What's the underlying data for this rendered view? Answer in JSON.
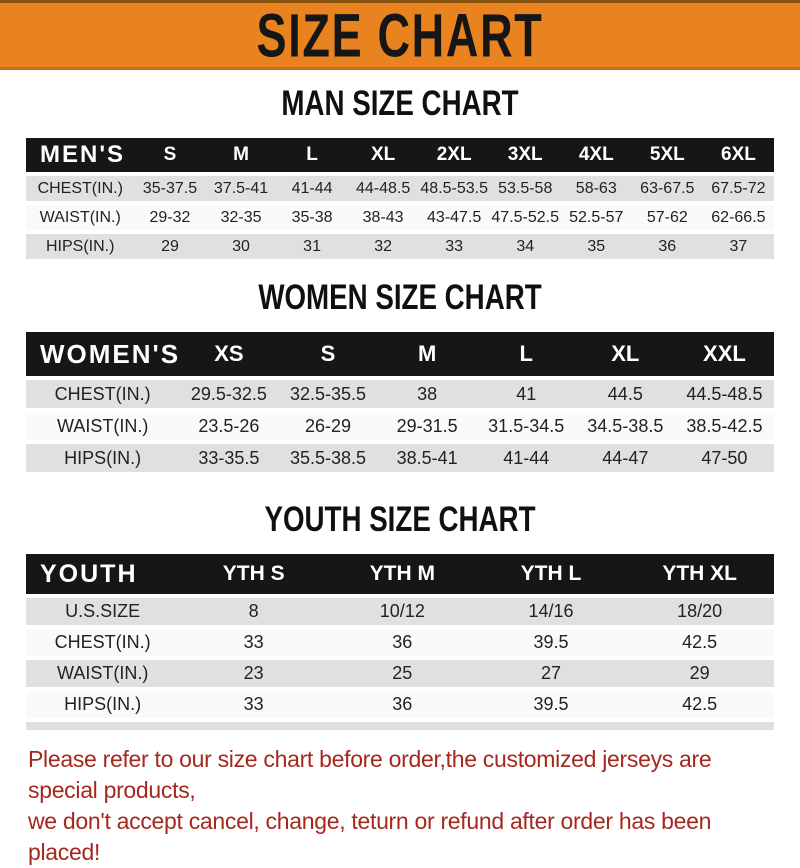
{
  "banner": {
    "title": "SIZE CHART",
    "bg_color": "#E8831F",
    "text_color": "#161616"
  },
  "sections": [
    {
      "heading": "MAN SIZE CHART",
      "table": {
        "header": [
          "MEN'S",
          "S",
          "M",
          "L",
          "XL",
          "2XL",
          "3XL",
          "4XL",
          "5XL",
          "6XL"
        ],
        "rows": [
          [
            "CHEST(IN.)",
            "35-37.5",
            "37.5-41",
            "41-44",
            "44-48.5",
            "48.5-53.5",
            "53.5-58",
            "58-63",
            "63-67.5",
            "67.5-72"
          ],
          [
            "WAIST(IN.)",
            "29-32",
            "32-35",
            "35-38",
            "38-43",
            "43-47.5",
            "47.5-52.5",
            "52.5-57",
            "57-62",
            "62-66.5"
          ],
          [
            "HIPS(IN.)",
            "29",
            "30",
            "31",
            "32",
            "33",
            "34",
            "35",
            "36",
            "37"
          ]
        ]
      }
    },
    {
      "heading": "WOMEN SIZE CHART",
      "table": {
        "header": [
          "WOMEN'S",
          "XS",
          "S",
          "M",
          "L",
          "XL",
          "XXL"
        ],
        "rows": [
          [
            "CHEST(IN.)",
            "29.5-32.5",
            "32.5-35.5",
            "38",
            "41",
            "44.5",
            "44.5-48.5"
          ],
          [
            "WAIST(IN.)",
            "23.5-26",
            "26-29",
            "29-31.5",
            "31.5-34.5",
            "34.5-38.5",
            "38.5-42.5"
          ],
          [
            "HIPS(IN.)",
            "33-35.5",
            "35.5-38.5",
            "38.5-41",
            "41-44",
            "44-47",
            "47-50"
          ]
        ]
      }
    },
    {
      "heading": "YOUTH SIZE CHART",
      "table": {
        "header": [
          "YOUTH",
          "YTH S",
          "YTH M",
          "YTH L",
          "YTH XL"
        ],
        "rows": [
          [
            "U.S.SIZE",
            "8",
            "10/12",
            "14/16",
            "18/20"
          ],
          [
            "CHEST(IN.)",
            "33",
            "36",
            "39.5",
            "42.5"
          ],
          [
            "WAIST(IN.)",
            "23",
            "25",
            "27",
            "29"
          ],
          [
            "HIPS(IN.)",
            "33",
            "36",
            "39.5",
            "42.5"
          ]
        ]
      }
    }
  ],
  "disclaimer": {
    "line1": "Please refer to our size chart before order,the customized jerseys are special products,",
    "line2": "we don't accept cancel, change, teturn or refund after order has been placed!",
    "text_color": "#A5281E"
  },
  "colors": {
    "table_header_bg": "#161616",
    "table_header_text": "#FFFFFF",
    "row_shaded": "#E0E0E0",
    "row_plain": "#FAFAFA"
  }
}
